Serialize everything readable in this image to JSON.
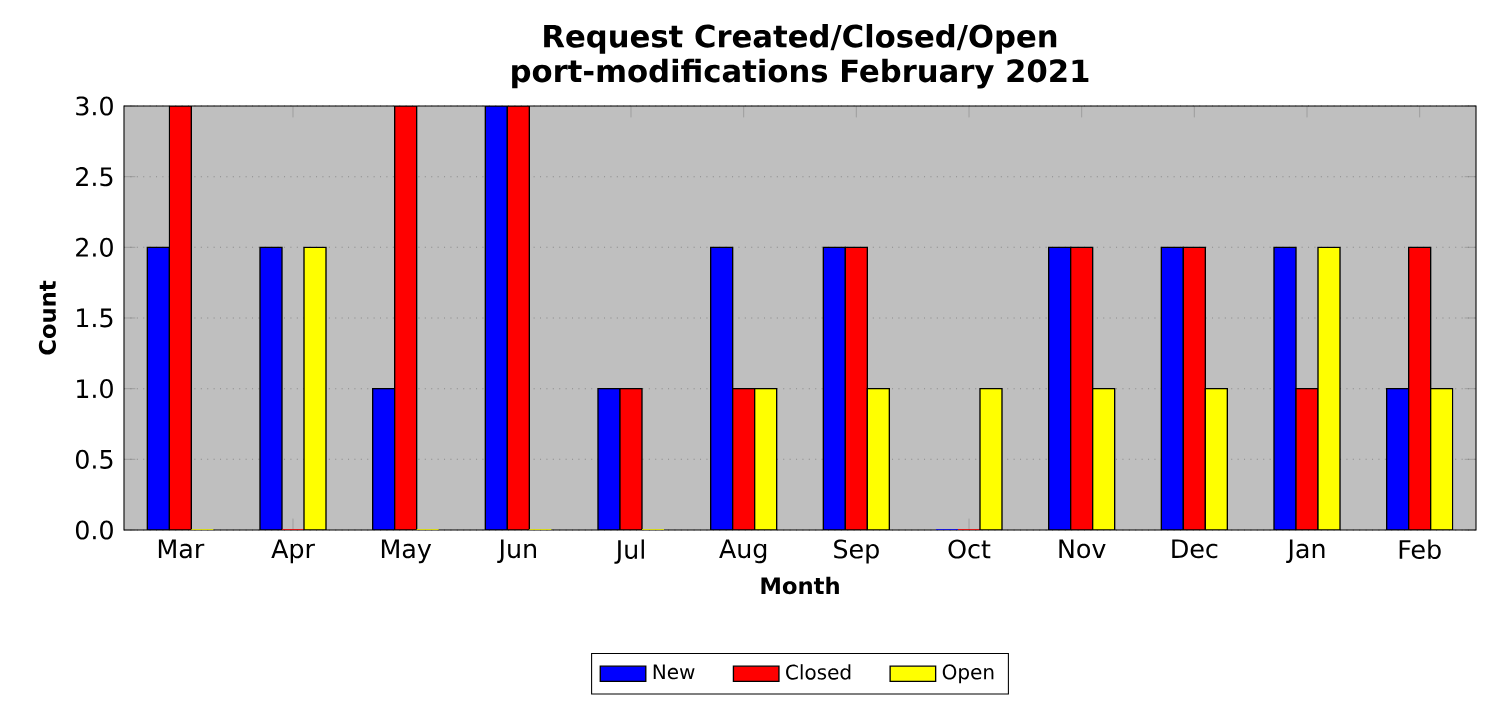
{
  "chart_data": {
    "type": "bar",
    "title": "Request Created/Closed/Open",
    "subtitle": "port-modifications February 2021",
    "xlabel": "Month",
    "ylabel": "Count",
    "categories": [
      "Mar",
      "Apr",
      "May",
      "Jun",
      "Jul",
      "Aug",
      "Sep",
      "Oct",
      "Nov",
      "Dec",
      "Jan",
      "Feb"
    ],
    "series": [
      {
        "name": "New",
        "color": "#0000ff",
        "values": [
          2,
          2,
          1,
          3,
          1,
          2,
          2,
          0,
          2,
          2,
          2,
          1
        ]
      },
      {
        "name": "Closed",
        "color": "#ff0000",
        "values": [
          3,
          0,
          3,
          3,
          1,
          1,
          2,
          0,
          2,
          2,
          1,
          2
        ]
      },
      {
        "name": "Open",
        "color": "#ffff00",
        "values": [
          0,
          2,
          0,
          0,
          0,
          1,
          1,
          1,
          1,
          1,
          2,
          1
        ]
      }
    ],
    "ylim": [
      0,
      3
    ],
    "yticks": [
      {
        "value": 0,
        "label": "0.0"
      },
      {
        "value": 0.5,
        "label": "0.5"
      },
      {
        "value": 1,
        "label": "1.0"
      },
      {
        "value": 1.5,
        "label": "1.5"
      },
      {
        "value": 2,
        "label": "2.0"
      },
      {
        "value": 2.5,
        "label": "2.5"
      },
      {
        "value": 3,
        "label": "3.0"
      }
    ],
    "grid": "y",
    "legend": "bottom"
  }
}
